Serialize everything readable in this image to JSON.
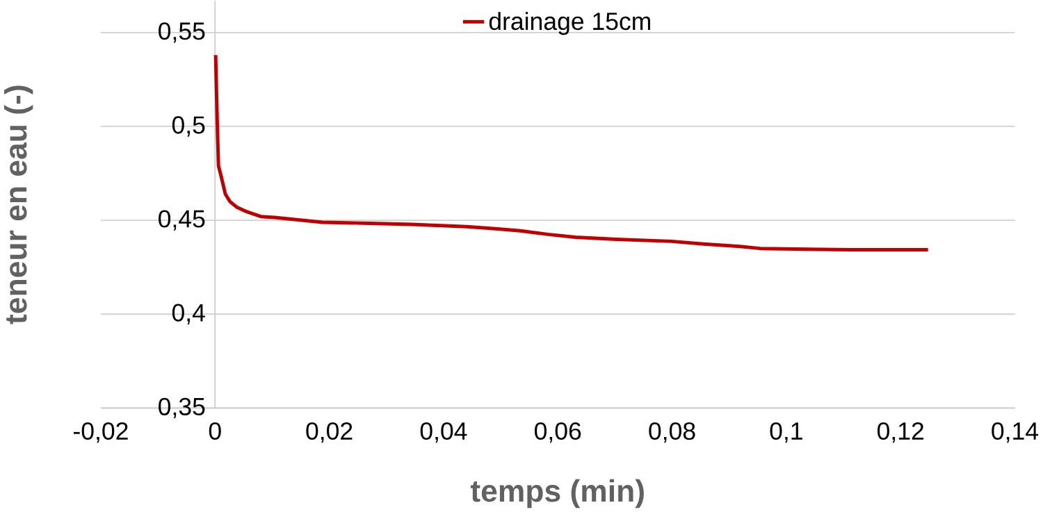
{
  "chart_data": {
    "type": "line",
    "xlabel": "temps (min)",
    "ylabel": "teneur en eau (-)",
    "xlim": [
      -0.02,
      0.14
    ],
    "ylim": [
      0.35,
      0.567
    ],
    "xticks": [
      {
        "value": -0.02,
        "label": "-0,02"
      },
      0,
      {
        "value": 0.02,
        "label": "0,02"
      },
      {
        "value": 0.04,
        "label": "0,04"
      },
      {
        "value": 0.06,
        "label": "0,06"
      },
      {
        "value": 0.08,
        "label": "0,08"
      },
      {
        "value": 0.1,
        "label": "0,1"
      },
      {
        "value": 0.12,
        "label": "0,12"
      },
      {
        "value": 0.14,
        "label": "0,14"
      }
    ],
    "yticks": [
      {
        "value": 0.35,
        "label": "0,35"
      },
      {
        "value": 0.4,
        "label": "0,4"
      },
      {
        "value": 0.45,
        "label": "0,45"
      },
      {
        "value": 0.5,
        "label": "0,5"
      },
      {
        "value": 0.55,
        "label": "0,55"
      }
    ],
    "grid": "y",
    "legend": "top",
    "marker": "none",
    "line_style": "solid",
    "series": [
      {
        "name": "drainage 15cm",
        "color": "#c00000",
        "x": [
          0.0001,
          0.0004,
          0.0006,
          0.0011,
          0.0018,
          0.0026,
          0.0038,
          0.0056,
          0.008,
          0.0104,
          0.014,
          0.0188,
          0.026,
          0.0344,
          0.044,
          0.0487,
          0.0535,
          0.0583,
          0.0631,
          0.0703,
          0.0799,
          0.0859,
          0.0919,
          0.0954,
          0.1038,
          0.111,
          0.1248
        ],
        "values": [
          0.538,
          0.5,
          0.479,
          0.473,
          0.464,
          0.46,
          0.457,
          0.4545,
          0.452,
          0.4515,
          0.4504,
          0.4489,
          0.4485,
          0.4478,
          0.4466,
          0.4456,
          0.4444,
          0.4425,
          0.441,
          0.4399,
          0.4388,
          0.4373,
          0.4361,
          0.435,
          0.4346,
          0.4343,
          0.4343
        ]
      }
    ]
  }
}
